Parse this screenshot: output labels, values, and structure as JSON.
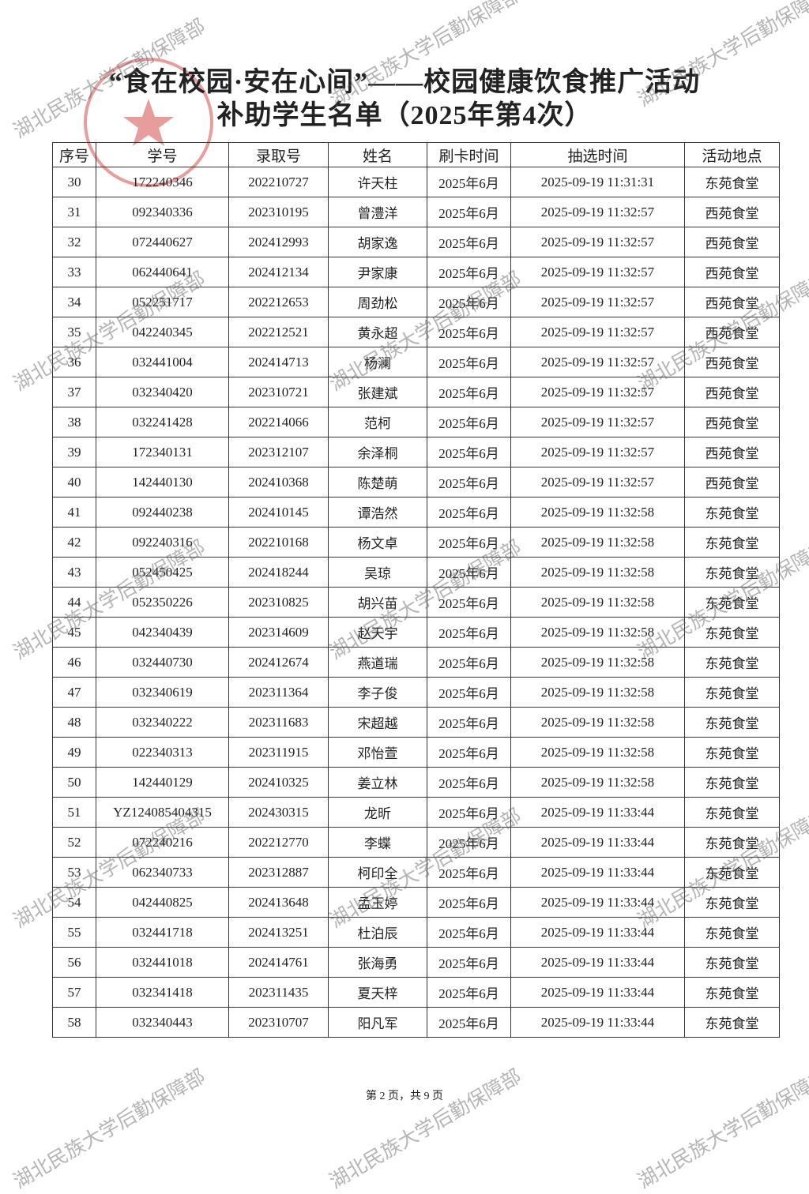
{
  "header": {
    "title_line1": "“食在校园·安在心间”——校园健康饮食推广活动",
    "title_line2": "补助学生名单（2025年第4次）"
  },
  "table": {
    "columns": [
      "序号",
      "学号",
      "录取号",
      "姓名",
      "刷卡时间",
      "抽选时间",
      "活动地点"
    ],
    "rows": [
      [
        "30",
        "172240346",
        "202210727",
        "许天柱",
        "2025年6月",
        "2025-09-19 11:31:31",
        "东苑食堂"
      ],
      [
        "31",
        "092340336",
        "202310195",
        "曾澧洋",
        "2025年6月",
        "2025-09-19 11:32:57",
        "西苑食堂"
      ],
      [
        "32",
        "072440627",
        "202412993",
        "胡家逸",
        "2025年6月",
        "2025-09-19 11:32:57",
        "西苑食堂"
      ],
      [
        "33",
        "062440641",
        "202412134",
        "尹家康",
        "2025年6月",
        "2025-09-19 11:32:57",
        "西苑食堂"
      ],
      [
        "34",
        "052251717",
        "202212653",
        "周劲松",
        "2025年6月",
        "2025-09-19 11:32:57",
        "西苑食堂"
      ],
      [
        "35",
        "042240345",
        "202212521",
        "黄永超",
        "2025年6月",
        "2025-09-19 11:32:57",
        "西苑食堂"
      ],
      [
        "36",
        "032441004",
        "202414713",
        "杨澜",
        "2025年6月",
        "2025-09-19 11:32:57",
        "西苑食堂"
      ],
      [
        "37",
        "032340420",
        "202310721",
        "张建斌",
        "2025年6月",
        "2025-09-19 11:32:57",
        "西苑食堂"
      ],
      [
        "38",
        "032241428",
        "202214066",
        "范柯",
        "2025年6月",
        "2025-09-19 11:32:57",
        "西苑食堂"
      ],
      [
        "39",
        "172340131",
        "202312107",
        "余泽桐",
        "2025年6月",
        "2025-09-19 11:32:57",
        "西苑食堂"
      ],
      [
        "40",
        "142440130",
        "202410368",
        "陈楚萌",
        "2025年6月",
        "2025-09-19 11:32:57",
        "西苑食堂"
      ],
      [
        "41",
        "092440238",
        "202410145",
        "谭浩然",
        "2025年6月",
        "2025-09-19 11:32:58",
        "东苑食堂"
      ],
      [
        "42",
        "092240316",
        "202210168",
        "杨文卓",
        "2025年6月",
        "2025-09-19 11:32:58",
        "东苑食堂"
      ],
      [
        "43",
        "052450425",
        "202418244",
        "吴琼",
        "2025年6月",
        "2025-09-19 11:32:58",
        "东苑食堂"
      ],
      [
        "44",
        "052350226",
        "202310825",
        "胡兴苗",
        "2025年6月",
        "2025-09-19 11:32:58",
        "东苑食堂"
      ],
      [
        "45",
        "042340439",
        "202314609",
        "赵天宇",
        "2025年6月",
        "2025-09-19 11:32:58",
        "东苑食堂"
      ],
      [
        "46",
        "032440730",
        "202412674",
        "燕道瑞",
        "2025年6月",
        "2025-09-19 11:32:58",
        "东苑食堂"
      ],
      [
        "47",
        "032340619",
        "202311364",
        "李子俊",
        "2025年6月",
        "2025-09-19 11:32:58",
        "东苑食堂"
      ],
      [
        "48",
        "032340222",
        "202311683",
        "宋超越",
        "2025年6月",
        "2025-09-19 11:32:58",
        "东苑食堂"
      ],
      [
        "49",
        "022340313",
        "202311915",
        "邓怡萱",
        "2025年6月",
        "2025-09-19 11:32:58",
        "东苑食堂"
      ],
      [
        "50",
        "142440129",
        "202410325",
        "姜立林",
        "2025年6月",
        "2025-09-19 11:32:58",
        "东苑食堂"
      ],
      [
        "51",
        "YZ124085404315",
        "202430315",
        "龙昕",
        "2025年6月",
        "2025-09-19 11:33:44",
        "东苑食堂"
      ],
      [
        "52",
        "072240216",
        "202212770",
        "李蝶",
        "2025年6月",
        "2025-09-19 11:33:44",
        "东苑食堂"
      ],
      [
        "53",
        "062340733",
        "202312887",
        "柯印全",
        "2025年6月",
        "2025-09-19 11:33:44",
        "东苑食堂"
      ],
      [
        "54",
        "042440825",
        "202413648",
        "孟玉婷",
        "2025年6月",
        "2025-09-19 11:33:44",
        "东苑食堂"
      ],
      [
        "55",
        "032441718",
        "202413251",
        "杜泊辰",
        "2025年6月",
        "2025-09-19 11:33:44",
        "东苑食堂"
      ],
      [
        "56",
        "032441018",
        "202414761",
        "张海勇",
        "2025年6月",
        "2025-09-19 11:33:44",
        "东苑食堂"
      ],
      [
        "57",
        "032341418",
        "202311435",
        "夏天梓",
        "2025年6月",
        "2025-09-19 11:33:44",
        "东苑食堂"
      ],
      [
        "58",
        "032340443",
        "202310707",
        "阳凡军",
        "2025年6月",
        "2025-09-19 11:33:44",
        "东苑食堂"
      ]
    ]
  },
  "footer": {
    "page": "第 2 页，共 9 页"
  },
  "watermark": "湖北民族大学后勤保障部"
}
